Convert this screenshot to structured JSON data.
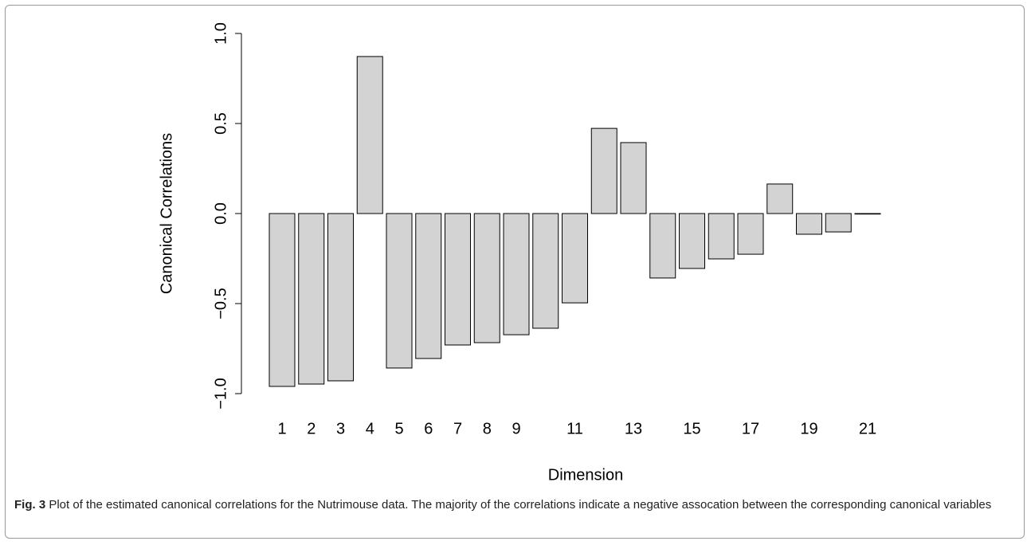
{
  "chart_data": {
    "type": "bar",
    "ylabel": "Canonical Correlations",
    "xlabel": "Dimension",
    "categories": [
      "1",
      "2",
      "3",
      "4",
      "5",
      "6",
      "7",
      "8",
      "9",
      null,
      "11",
      null,
      "13",
      null,
      "15",
      null,
      "17",
      null,
      "19",
      null,
      "21"
    ],
    "values": [
      -0.96,
      -0.947,
      -0.929,
      0.872,
      -0.858,
      -0.805,
      -0.73,
      -0.717,
      -0.673,
      -0.637,
      -0.496,
      0.473,
      0.394,
      -0.358,
      -0.305,
      -0.252,
      -0.226,
      0.164,
      -0.115,
      -0.102,
      -0.003
    ],
    "color": "#d3d3d3",
    "ylim": [
      -1,
      1
    ],
    "yticks": [
      {
        "value": -1,
        "label": "−1.0"
      },
      {
        "value": -0.5,
        "label": "−0.5"
      },
      {
        "value": 0,
        "label": "0.0"
      },
      {
        "value": 0.5,
        "label": "0.5"
      },
      {
        "value": 1,
        "label": "1.0"
      }
    ],
    "grid": false
  },
  "caption_label": "Fig. 3",
  "caption": "Plot of the estimated canonical correlations for the Nutrimouse data. The majority of the correlations indicate a negative assocation between the corresponding canonical variables"
}
